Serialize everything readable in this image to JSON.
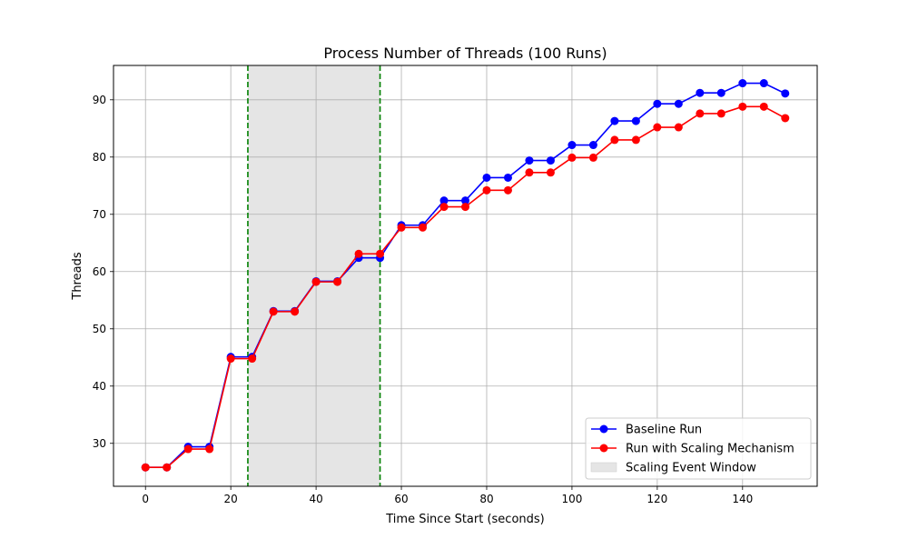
{
  "chart_data": {
    "type": "line",
    "title": "Process Number of Threads (100 Runs)",
    "xlabel": "Time Since Start (seconds)",
    "ylabel": "Threads",
    "xlim": [
      -7.5,
      157.5
    ],
    "ylim": [
      22.5,
      96
    ],
    "xticks": [
      0,
      20,
      40,
      60,
      80,
      100,
      120,
      140
    ],
    "yticks": [
      30,
      40,
      50,
      60,
      70,
      80,
      90
    ],
    "grid": true,
    "legend_position": "bottom-right",
    "x": [
      0,
      5,
      10,
      15,
      20,
      25,
      30,
      35,
      40,
      45,
      50,
      55,
      60,
      65,
      70,
      75,
      80,
      85,
      90,
      95,
      100,
      105,
      110,
      115,
      120,
      125,
      130,
      135,
      140,
      145,
      150
    ],
    "series": [
      {
        "name": "Baseline Run",
        "color": "#0000ff",
        "values": [
          25.8,
          25.8,
          29.4,
          29.4,
          45.1,
          45.1,
          53.1,
          53.1,
          58.3,
          58.3,
          62.4,
          62.4,
          68.1,
          68.1,
          72.4,
          72.4,
          76.4,
          76.4,
          79.4,
          79.4,
          82.1,
          82.1,
          86.3,
          86.3,
          89.3,
          89.3,
          91.2,
          91.2,
          92.9,
          92.9,
          91.1
        ]
      },
      {
        "name": "Run with Scaling Mechanism",
        "color": "#ff0000",
        "values": [
          25.8,
          25.8,
          29.0,
          29.0,
          44.8,
          44.8,
          53.0,
          53.0,
          58.2,
          58.2,
          63.1,
          63.1,
          67.7,
          67.7,
          71.3,
          71.3,
          74.2,
          74.2,
          77.3,
          77.3,
          79.9,
          79.9,
          83.0,
          83.0,
          85.2,
          85.2,
          87.6,
          87.6,
          88.8,
          88.8,
          86.8
        ]
      }
    ],
    "shaded_region": {
      "name": "Scaling Event Window",
      "x_start": 24,
      "x_end": 55,
      "fill_color": "#e5e5e5",
      "boundary_color": "#008000"
    }
  }
}
